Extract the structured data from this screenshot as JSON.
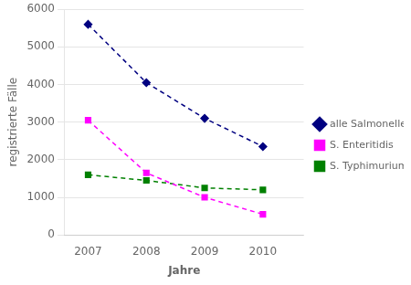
{
  "chart_data": {
    "type": "line",
    "xlabel": "Jahre",
    "ylabel": "registrierte Fälle",
    "x": [
      2007,
      2008,
      2009,
      2010
    ],
    "xlim": [
      2006.6,
      2010.7
    ],
    "xticks": [
      2007,
      2008,
      2009,
      2010
    ],
    "ylim": [
      0,
      6000
    ],
    "yticks": [
      0,
      1000,
      2000,
      3000,
      4000,
      5000,
      6000
    ],
    "grid": "y",
    "legend": "right",
    "series": [
      {
        "name": "alle Salmonellen",
        "color": "#000080",
        "marker": "diamond",
        "line_style": "dashed",
        "values": [
          5600,
          4050,
          3100,
          2350
        ]
      },
      {
        "name": "S. Enteritidis",
        "color": "#FF00FF",
        "marker": "square",
        "line_style": "dashed",
        "values": [
          3050,
          1650,
          1000,
          550
        ]
      },
      {
        "name": "S. Typhimurium",
        "color": "#008000",
        "marker": "square",
        "line_style": "dashed",
        "values": [
          1600,
          1450,
          1250,
          1200
        ]
      }
    ]
  }
}
